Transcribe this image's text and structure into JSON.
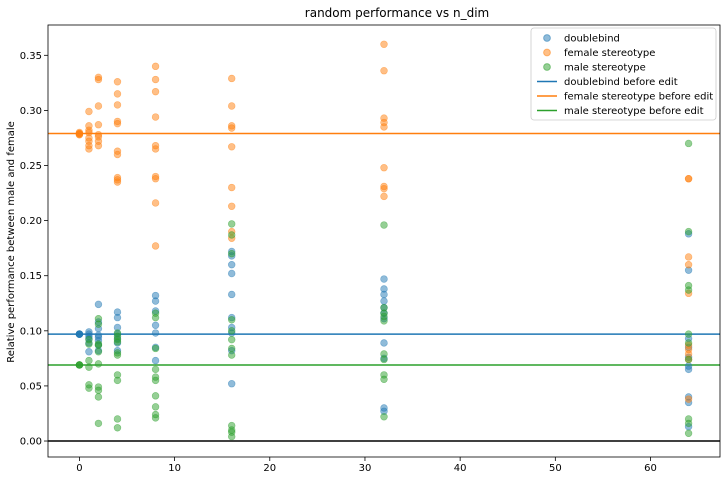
{
  "chart_data": {
    "type": "scatter",
    "title": "random performance vs n_dim",
    "xlabel": "",
    "ylabel": "Relative performance between male and female",
    "xlim": [
      -3.3,
      67.3
    ],
    "ylim": [
      -0.0145,
      0.3775
    ],
    "xticks": [
      0,
      10,
      20,
      30,
      40,
      50,
      60
    ],
    "yticks": [
      0.0,
      0.05,
      0.1,
      0.15,
      0.2,
      0.25,
      0.3,
      0.35
    ],
    "ytick_labels": [
      "0.00",
      "0.05",
      "0.10",
      "0.15",
      "0.20",
      "0.25",
      "0.30",
      "0.35"
    ],
    "grid": false,
    "legend_position": "top-right",
    "baseline": {
      "y": 0.0,
      "color": "#000000"
    },
    "series": [
      {
        "name": "doublebind",
        "color": "#1f77b4",
        "points": [
          [
            0,
            0.097
          ],
          [
            0,
            0.097
          ],
          [
            0,
            0.097
          ],
          [
            0,
            0.097
          ],
          [
            0,
            0.097
          ],
          [
            1,
            0.099
          ],
          [
            1,
            0.097
          ],
          [
            1,
            0.095
          ],
          [
            1,
            0.093
          ],
          [
            1,
            0.089
          ],
          [
            1,
            0.081
          ],
          [
            2,
            0.124
          ],
          [
            2,
            0.108
          ],
          [
            2,
            0.102
          ],
          [
            2,
            0.096
          ],
          [
            2,
            0.094
          ],
          [
            2,
            0.091
          ],
          [
            2,
            0.087
          ],
          [
            2,
            0.082
          ],
          [
            4,
            0.117
          ],
          [
            4,
            0.112
          ],
          [
            4,
            0.103
          ],
          [
            4,
            0.097
          ],
          [
            4,
            0.093
          ],
          [
            4,
            0.089
          ],
          [
            4,
            0.082
          ],
          [
            8,
            0.132
          ],
          [
            8,
            0.127
          ],
          [
            8,
            0.118
          ],
          [
            8,
            0.105
          ],
          [
            8,
            0.098
          ],
          [
            8,
            0.085
          ],
          [
            8,
            0.073
          ],
          [
            16,
            0.172
          ],
          [
            16,
            0.168
          ],
          [
            16,
            0.16
          ],
          [
            16,
            0.152
          ],
          [
            16,
            0.133
          ],
          [
            16,
            0.112
          ],
          [
            16,
            0.103
          ],
          [
            16,
            0.098
          ],
          [
            16,
            0.082
          ],
          [
            16,
            0.052
          ],
          [
            32,
            0.147
          ],
          [
            32,
            0.138
          ],
          [
            32,
            0.133
          ],
          [
            32,
            0.127
          ],
          [
            32,
            0.121
          ],
          [
            32,
            0.116
          ],
          [
            32,
            0.111
          ],
          [
            32,
            0.089
          ],
          [
            32,
            0.075
          ],
          [
            32,
            0.03
          ],
          [
            32,
            0.027
          ],
          [
            64,
            0.188
          ],
          [
            64,
            0.155
          ],
          [
            64,
            0.093
          ],
          [
            64,
            0.085
          ],
          [
            64,
            0.076
          ],
          [
            64,
            0.068
          ],
          [
            64,
            0.065
          ],
          [
            64,
            0.04
          ],
          [
            64,
            0.035
          ],
          [
            64,
            0.013
          ]
        ]
      },
      {
        "name": "female stereotype",
        "color": "#ff7f0e",
        "points": [
          [
            0,
            0.28
          ],
          [
            0,
            0.279
          ],
          [
            0,
            0.279
          ],
          [
            0,
            0.278
          ],
          [
            0,
            0.278
          ],
          [
            1,
            0.299
          ],
          [
            1,
            0.286
          ],
          [
            1,
            0.282
          ],
          [
            1,
            0.28
          ],
          [
            1,
            0.275
          ],
          [
            1,
            0.272
          ],
          [
            1,
            0.268
          ],
          [
            1,
            0.265
          ],
          [
            2,
            0.33
          ],
          [
            2,
            0.328
          ],
          [
            2,
            0.304
          ],
          [
            2,
            0.287
          ],
          [
            2,
            0.278
          ],
          [
            2,
            0.276
          ],
          [
            2,
            0.272
          ],
          [
            2,
            0.268
          ],
          [
            4,
            0.326
          ],
          [
            4,
            0.315
          ],
          [
            4,
            0.305
          ],
          [
            4,
            0.29
          ],
          [
            4,
            0.288
          ],
          [
            4,
            0.263
          ],
          [
            4,
            0.26
          ],
          [
            4,
            0.239
          ],
          [
            4,
            0.237
          ],
          [
            4,
            0.235
          ],
          [
            8,
            0.34
          ],
          [
            8,
            0.328
          ],
          [
            8,
            0.317
          ],
          [
            8,
            0.294
          ],
          [
            8,
            0.268
          ],
          [
            8,
            0.265
          ],
          [
            8,
            0.24
          ],
          [
            8,
            0.238
          ],
          [
            8,
            0.216
          ],
          [
            8,
            0.177
          ],
          [
            16,
            0.329
          ],
          [
            16,
            0.304
          ],
          [
            16,
            0.286
          ],
          [
            16,
            0.284
          ],
          [
            16,
            0.267
          ],
          [
            16,
            0.23
          ],
          [
            16,
            0.213
          ],
          [
            16,
            0.19
          ],
          [
            16,
            0.184
          ],
          [
            32,
            0.36
          ],
          [
            32,
            0.336
          ],
          [
            32,
            0.293
          ],
          [
            32,
            0.289
          ],
          [
            32,
            0.285
          ],
          [
            32,
            0.248
          ],
          [
            32,
            0.231
          ],
          [
            32,
            0.229
          ],
          [
            32,
            0.222
          ],
          [
            64,
            0.238
          ],
          [
            64,
            0.238
          ],
          [
            64,
            0.167
          ],
          [
            64,
            0.16
          ],
          [
            64,
            0.134
          ],
          [
            64,
            0.087
          ],
          [
            64,
            0.083
          ],
          [
            64,
            0.079
          ],
          [
            64,
            0.074
          ],
          [
            64,
            0.038
          ]
        ]
      },
      {
        "name": "male stereotype",
        "color": "#2ca02c",
        "points": [
          [
            0,
            0.069
          ],
          [
            0,
            0.069
          ],
          [
            0,
            0.069
          ],
          [
            0,
            0.069
          ],
          [
            1,
            0.092
          ],
          [
            1,
            0.088
          ],
          [
            1,
            0.073
          ],
          [
            1,
            0.067
          ],
          [
            1,
            0.051
          ],
          [
            1,
            0.048
          ],
          [
            2,
            0.111
          ],
          [
            2,
            0.106
          ],
          [
            2,
            0.088
          ],
          [
            2,
            0.087
          ],
          [
            2,
            0.081
          ],
          [
            2,
            0.07
          ],
          [
            2,
            0.049
          ],
          [
            2,
            0.046
          ],
          [
            2,
            0.04
          ],
          [
            2,
            0.016
          ],
          [
            4,
            0.098
          ],
          [
            4,
            0.095
          ],
          [
            4,
            0.092
          ],
          [
            4,
            0.09
          ],
          [
            4,
            0.08
          ],
          [
            4,
            0.078
          ],
          [
            4,
            0.06
          ],
          [
            4,
            0.055
          ],
          [
            4,
            0.02
          ],
          [
            4,
            0.012
          ],
          [
            8,
            0.116
          ],
          [
            8,
            0.112
          ],
          [
            8,
            0.084
          ],
          [
            8,
            0.065
          ],
          [
            8,
            0.058
          ],
          [
            8,
            0.055
          ],
          [
            8,
            0.041
          ],
          [
            8,
            0.031
          ],
          [
            8,
            0.024
          ],
          [
            8,
            0.021
          ],
          [
            16,
            0.197
          ],
          [
            16,
            0.187
          ],
          [
            16,
            0.17
          ],
          [
            16,
            0.11
          ],
          [
            16,
            0.1
          ],
          [
            16,
            0.092
          ],
          [
            16,
            0.084
          ],
          [
            16,
            0.078
          ],
          [
            16,
            0.014
          ],
          [
            16,
            0.01
          ],
          [
            16,
            0.008
          ],
          [
            16,
            0.004
          ],
          [
            32,
            0.196
          ],
          [
            32,
            0.121
          ],
          [
            32,
            0.116
          ],
          [
            32,
            0.113
          ],
          [
            32,
            0.109
          ],
          [
            32,
            0.079
          ],
          [
            32,
            0.074
          ],
          [
            32,
            0.06
          ],
          [
            32,
            0.056
          ],
          [
            32,
            0.022
          ],
          [
            64,
            0.27
          ],
          [
            64,
            0.19
          ],
          [
            64,
            0.141
          ],
          [
            64,
            0.137
          ],
          [
            64,
            0.097
          ],
          [
            64,
            0.089
          ],
          [
            64,
            0.074
          ],
          [
            64,
            0.02
          ],
          [
            64,
            0.016
          ],
          [
            64,
            0.007
          ]
        ]
      }
    ],
    "reference_lines": [
      {
        "name": "doublebind before edit",
        "y": 0.097,
        "color": "#1f77b4"
      },
      {
        "name": "female stereotype before edit",
        "y": 0.279,
        "color": "#ff7f0e"
      },
      {
        "name": "male stereotype before edit",
        "y": 0.069,
        "color": "#2ca02c"
      }
    ]
  }
}
